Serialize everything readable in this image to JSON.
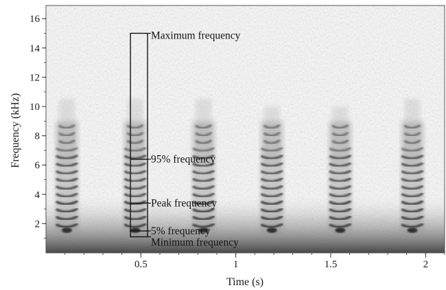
{
  "chart_data": {
    "type": "heatmap",
    "subtype": "spectrogram",
    "xlabel": "Time (s)",
    "ylabel": "Frequency (kHz)",
    "xlim": [
      0.0,
      2.1
    ],
    "ylim": [
      0,
      16.9
    ],
    "x_ticks": [
      0.5,
      1,
      1.5,
      2
    ],
    "x_tick_labels": [
      "0.5",
      "1",
      "1.5",
      "2"
    ],
    "y_ticks": [
      2,
      4,
      6,
      8,
      10,
      12,
      14,
      16
    ],
    "y_tick_labels": [
      "2",
      "4",
      "6",
      "8",
      "10",
      "12",
      "14",
      "16"
    ],
    "colormap": "grayscale",
    "syllables": [
      {
        "t_center": 0.11,
        "f_low": 1.3,
        "f_high": 10.5
      },
      {
        "t_center": 0.47,
        "f_low": 1.3,
        "f_high": 10.5
      },
      {
        "t_center": 0.83,
        "f_low": 1.3,
        "f_high": 10.5
      },
      {
        "t_center": 1.19,
        "f_low": 1.3,
        "f_high": 10.0
      },
      {
        "t_center": 1.55,
        "f_low": 1.3,
        "f_high": 10.0
      },
      {
        "t_center": 1.93,
        "f_low": 1.3,
        "f_high": 10.5
      }
    ],
    "measurement_box": {
      "t_start": 0.445,
      "t_end": 0.535,
      "f_min": 1.1,
      "f_max": 15.0
    },
    "annotations": [
      {
        "label": "Maximum frequency",
        "frequency_khz": 15.0
      },
      {
        "label": "95% frequency",
        "frequency_khz": 6.4
      },
      {
        "label": "Peak frequency",
        "frequency_khz": 3.4
      },
      {
        "label": "5% frequency",
        "frequency_khz": 1.5
      },
      {
        "label": "Minimum frequency",
        "frequency_khz": 1.1
      }
    ]
  }
}
